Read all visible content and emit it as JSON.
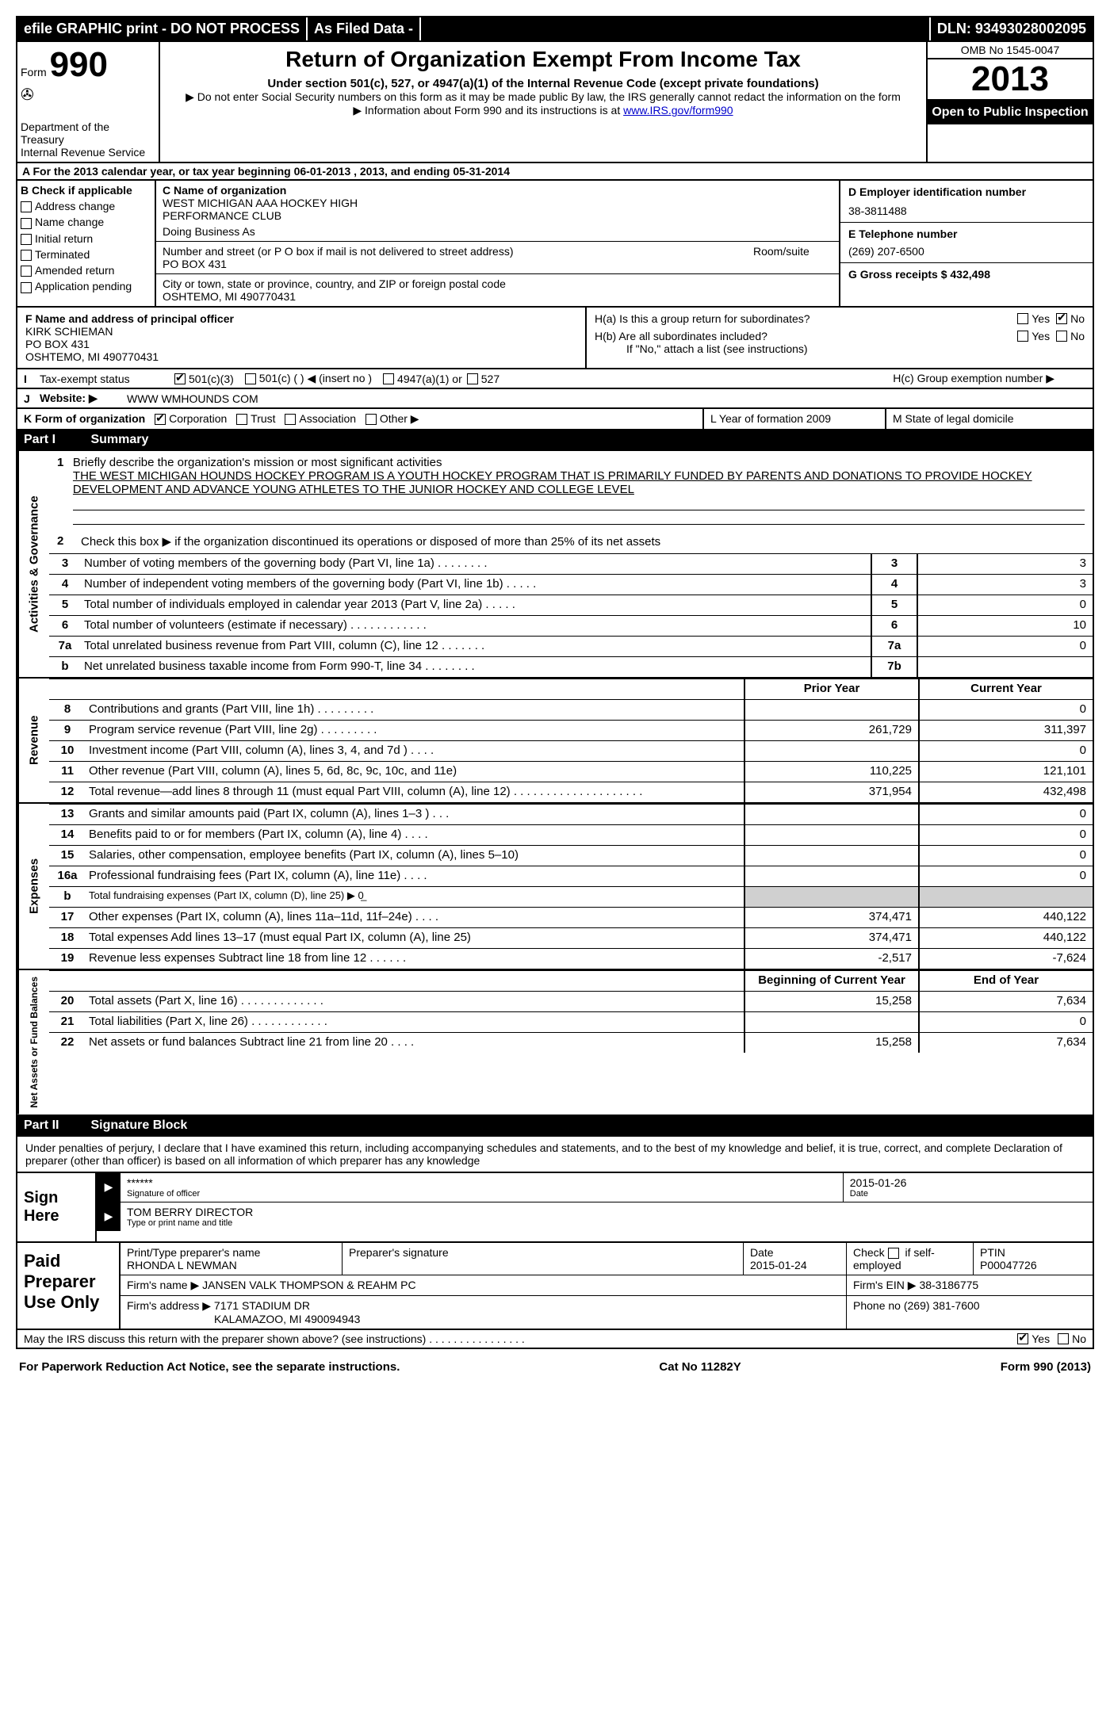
{
  "header": {
    "efile": "efile GRAPHIC print - DO NOT PROCESS",
    "asFiled": "As Filed Data -",
    "dln": "DLN: 93493028002095"
  },
  "formHead": {
    "formWord": "Form",
    "formNum": "990",
    "dept": "Department of the Treasury",
    "irs": "Internal Revenue Service",
    "title": "Return of Organization Exempt From Income Tax",
    "sub1": "Under section 501(c), 527, or 4947(a)(1) of the Internal Revenue Code (except private foundations)",
    "sub2": "▶ Do not enter Social Security numbers on this form as it may be made public  By law, the IRS generally cannot redact the information on the form",
    "sub3a": "▶ Information about Form 990 and its instructions is at ",
    "sub3link": "www.IRS.gov/form990",
    "omb": "OMB No  1545-0047",
    "year": "2013",
    "open": "Open to Public Inspection"
  },
  "rowA": "A  For the 2013 calendar year, or tax year beginning 06-01-2013     , 2013, and ending 05-31-2014",
  "colB": {
    "title": "B  Check if applicable",
    "items": [
      "Address change",
      "Name change",
      "Initial return",
      "Terminated",
      "Amended return",
      "Application pending"
    ]
  },
  "colC": {
    "nameLabel": "C Name of organization",
    "name1": "WEST MICHIGAN AAA HOCKEY HIGH",
    "name2": "PERFORMANCE CLUB",
    "dba": "Doing Business As",
    "streetLabel": "Number and street (or P O  box if mail is not delivered to street address)",
    "roomLabel": "Room/suite",
    "street": "PO BOX 431",
    "cityLabel": "City or town, state or province, country, and ZIP or foreign postal code",
    "city": "OSHTEMO, MI  490770431"
  },
  "colD": {
    "einLabel": "D Employer identification number",
    "ein": "38-3811488",
    "telLabel": "E Telephone number",
    "tel": "(269) 207-6500",
    "grossLabel": "G Gross receipts $ 432,498"
  },
  "sectionF": {
    "label": "F  Name and address of principal officer",
    "name": "KIRK SCHIEMAN",
    "addr1": "PO BOX 431",
    "addr2": "OSHTEMO, MI  490770431"
  },
  "sectionH": {
    "ha": "H(a)  Is this a group return for subordinates?",
    "hb": "H(b)  Are all subordinates included?",
    "hbNote": "If \"No,\" attach a list  (see instructions)",
    "hc": "H(c)   Group exemption number ▶",
    "yes": "Yes",
    "no": "No"
  },
  "rowI": {
    "label": "I",
    "text": "Tax-exempt status",
    "opt1": "501(c)(3)",
    "opt2": "501(c) (   ) ◀ (insert no )",
    "opt3": "4947(a)(1) or",
    "opt4": "527"
  },
  "rowJ": {
    "label": "J",
    "text": "Website: ▶",
    "val": "WWW WMHOUNDS COM"
  },
  "rowK": {
    "k": "K Form of organization",
    "opts": [
      "Corporation",
      "Trust",
      "Association",
      "Other ▶"
    ],
    "l": "L Year of formation  2009",
    "m": "M State of legal domicile"
  },
  "part1": {
    "label": "Part I",
    "title": "Summary"
  },
  "governance": {
    "sideLabel": "Activities & Governance",
    "q1label": "1",
    "q1text": "Briefly describe the organization's mission or most significant activities",
    "q1val": "THE WEST MICHIGAN HOUNDS HOCKEY PROGRAM IS A YOUTH HOCKEY PROGRAM THAT IS PRIMARILY FUNDED BY PARENTS AND DONATIONS TO PROVIDE HOCKEY DEVELOPMENT AND ADVANCE YOUNG ATHLETES TO THE JUNIOR HOCKEY AND COLLEGE LEVEL",
    "q2": "Check this box ▶     if the organization discontinued its operations or disposed of more than 25% of its net assets",
    "rows": [
      {
        "n": "3",
        "desc": "Number of voting members of the governing body (Part VI, line 1a)  .   .   .   .   .   .   .   .",
        "box": "3",
        "val": "3"
      },
      {
        "n": "4",
        "desc": "Number of independent voting members of the governing body (Part VI, line 1b)  .   .   .   .   .",
        "box": "4",
        "val": "3"
      },
      {
        "n": "5",
        "desc": "Total number of individuals employed in calendar year 2013 (Part V, line 2a)  .   .   .   .   .",
        "box": "5",
        "val": "0"
      },
      {
        "n": "6",
        "desc": "Total number of volunteers (estimate if necessary)  .   .   .   .   .   .   .   .   .   .   .   .",
        "box": "6",
        "val": "10"
      },
      {
        "n": "7a",
        "desc": "Total unrelated business revenue from Part VIII, column (C), line 12  .   .   .   .   .   .   .",
        "box": "7a",
        "val": "0"
      },
      {
        "n": "b",
        "desc": "Net unrelated business taxable income from Form 990-T, line 34  .   .   .   .   .   .   .   .",
        "box": "7b",
        "val": ""
      }
    ]
  },
  "revenue": {
    "sideLabel": "Revenue",
    "head1": "Prior Year",
    "head2": "Current Year",
    "rows": [
      {
        "n": "8",
        "desc": "Contributions and grants (Part VIII, line 1h)  .   .   .   .   .   .   .   .   .",
        "c1": "",
        "c2": "0"
      },
      {
        "n": "9",
        "desc": "Program service revenue (Part VIII, line 2g)  .   .   .   .   .   .   .   .   .",
        "c1": "261,729",
        "c2": "311,397"
      },
      {
        "n": "10",
        "desc": "Investment income (Part VIII, column (A), lines 3, 4, and 7d )  .   .   .   .",
        "c1": "",
        "c2": "0"
      },
      {
        "n": "11",
        "desc": "Other revenue (Part VIII, column (A), lines 5, 6d, 8c, 9c, 10c, and 11e)",
        "c1": "110,225",
        "c2": "121,101"
      },
      {
        "n": "12",
        "desc": "Total revenue—add lines 8 through 11 (must equal Part VIII, column (A), line 12) .   .   .   .   .   .   .   .   .   .   .   .   .   .   .   .   .   .   .   .",
        "c1": "371,954",
        "c2": "432,498"
      }
    ]
  },
  "expenses": {
    "sideLabel": "Expenses",
    "rows": [
      {
        "n": "13",
        "desc": "Grants and similar amounts paid (Part IX, column (A), lines 1–3 )  .   .   .",
        "c1": "",
        "c2": "0"
      },
      {
        "n": "14",
        "desc": "Benefits paid to or for members (Part IX, column (A), line 4)  .   .   .   .",
        "c1": "",
        "c2": "0"
      },
      {
        "n": "15",
        "desc": "Salaries, other compensation, employee benefits (Part IX, column (A), lines 5–10)",
        "c1": "",
        "c2": "0"
      },
      {
        "n": "16a",
        "desc": "Professional fundraising fees (Part IX, column (A), line 11e)  .   .   .   .",
        "c1": "",
        "c2": "0"
      },
      {
        "n": "b",
        "desc": "Total fundraising expenses (Part IX, column (D), line 25) ▶ 0̲",
        "c1": "shade",
        "c2": "shade"
      },
      {
        "n": "17",
        "desc": "Other expenses (Part IX, column (A), lines 11a–11d, 11f–24e)  .   .   .   .",
        "c1": "374,471",
        "c2": "440,122"
      },
      {
        "n": "18",
        "desc": "Total expenses  Add lines 13–17 (must equal Part IX, column (A), line 25)",
        "c1": "374,471",
        "c2": "440,122"
      },
      {
        "n": "19",
        "desc": "Revenue less expenses  Subtract line 18 from line 12  .   .   .   .   .   .",
        "c1": "-2,517",
        "c2": "-7,624"
      }
    ]
  },
  "netassets": {
    "sideLabel": "Net Assets or Fund Balances",
    "head1": "Beginning of Current Year",
    "head2": "End of Year",
    "rows": [
      {
        "n": "20",
        "desc": "Total assets (Part X, line 16)  .   .   .   .   .   .   .   .   .   .   .   .   .",
        "c1": "15,258",
        "c2": "7,634"
      },
      {
        "n": "21",
        "desc": "Total liabilities (Part X, line 26)  .   .   .   .   .   .   .   .   .   .   .   .",
        "c1": "",
        "c2": "0"
      },
      {
        "n": "22",
        "desc": "Net assets or fund balances  Subtract line 21 from line 20  .   .   .   .",
        "c1": "15,258",
        "c2": "7,634"
      }
    ]
  },
  "part2": {
    "label": "Part II",
    "title": "Signature Block"
  },
  "sig": {
    "text": "Under penalties of perjury, I declare that I have examined this return, including accompanying schedules and statements, and to the best of my knowledge and belief, it is true, correct, and complete  Declaration of preparer (other than officer) is based on all information of which preparer has any knowledge",
    "signHere": "Sign Here",
    "stars": "******",
    "sigOf": "Signature of officer",
    "date1": "2015-01-26",
    "dateLab": "Date",
    "name": "TOM BERRY DIRECTOR",
    "nameLab": "Type or print name and title"
  },
  "paid": {
    "title": "Paid Preparer Use Only",
    "h1": "Print/Type preparer's name",
    "h2": "Preparer's signature",
    "h3": "Date",
    "h4": "Check      if self-employed",
    "h5": "PTIN",
    "pname": "RHONDA L NEWMAN",
    "pdate": "2015-01-24",
    "ptin": "P00047726",
    "firmNameLab": "Firm's name    ▶",
    "firmName": "JANSEN VALK THOMPSON & REAHM PC",
    "firmEinLab": "Firm's EIN ▶",
    "firmEin": "38-3186775",
    "firmAddrLab": "Firm's address ▶",
    "firmAddr1": "7171 STADIUM DR",
    "firmAddr2": "KALAMAZOO, MI  490094943",
    "phoneLab": "Phone no  (269) 381-7600"
  },
  "discuss": {
    "text": "May the IRS discuss this return with the preparer shown above? (see instructions)  .   .   .   .   .   .   .   .   .   .   .   .   .   .   .   .",
    "yes": "Yes",
    "no": "No"
  },
  "footer": {
    "left": "For Paperwork Reduction Act Notice, see the separate instructions.",
    "mid": "Cat No  11282Y",
    "right": "Form 990 (2013)"
  }
}
